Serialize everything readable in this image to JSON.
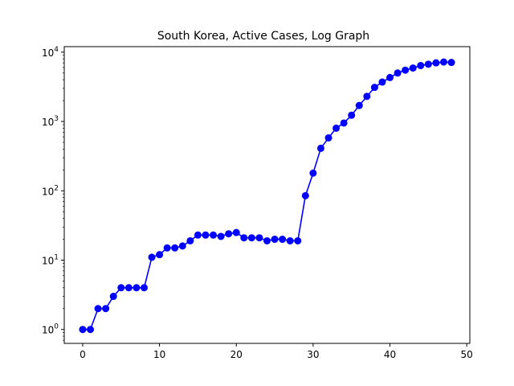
{
  "chart_data": {
    "type": "line",
    "title": "South Korea, Active Cases, Log Graph",
    "xlabel": "",
    "ylabel": "",
    "yscale": "log",
    "xlim": [
      -2.4,
      50.4
    ],
    "ylim": [
      0.63,
      12000
    ],
    "grid": false,
    "legend": "none",
    "marker": "circle",
    "colors": {
      "series": "#0000ff",
      "axes": "#000000",
      "background": "#ffffff"
    },
    "x_ticks": [
      {
        "value": 0,
        "label": "0"
      },
      {
        "value": 10,
        "label": "10"
      },
      {
        "value": 20,
        "label": "20"
      },
      {
        "value": 30,
        "label": "30"
      },
      {
        "value": 40,
        "label": "40"
      },
      {
        "value": 50,
        "label": "50"
      }
    ],
    "y_ticks": [
      {
        "value": 1,
        "base": "10",
        "exp": "0"
      },
      {
        "value": 10,
        "base": "10",
        "exp": "1"
      },
      {
        "value": 100,
        "base": "10",
        "exp": "2"
      },
      {
        "value": 1000,
        "base": "10",
        "exp": "3"
      },
      {
        "value": 10000,
        "base": "10",
        "exp": "4"
      }
    ],
    "series": [
      {
        "x": [
          0,
          1,
          2,
          3,
          4,
          5,
          6,
          7,
          8,
          9,
          10,
          11,
          12,
          13,
          14,
          15,
          16,
          17,
          18,
          19,
          20,
          21,
          22,
          23,
          24,
          25,
          26,
          27,
          28,
          29,
          30,
          31,
          32,
          33,
          34,
          35,
          36,
          37,
          38,
          39,
          40,
          41,
          42,
          43,
          44,
          45,
          46,
          47,
          48
        ],
        "y": [
          1,
          1,
          2,
          2,
          3,
          4,
          4,
          4,
          4,
          11,
          12,
          15,
          15,
          16,
          19,
          23,
          23,
          23,
          22,
          24,
          25,
          21,
          21,
          21,
          19,
          20,
          20,
          19,
          19,
          85,
          180,
          410,
          580,
          800,
          950,
          1230,
          1700,
          2300,
          3100,
          3700,
          4300,
          5000,
          5500,
          5900,
          6400,
          6700,
          7000,
          7200,
          7100
        ]
      }
    ]
  }
}
